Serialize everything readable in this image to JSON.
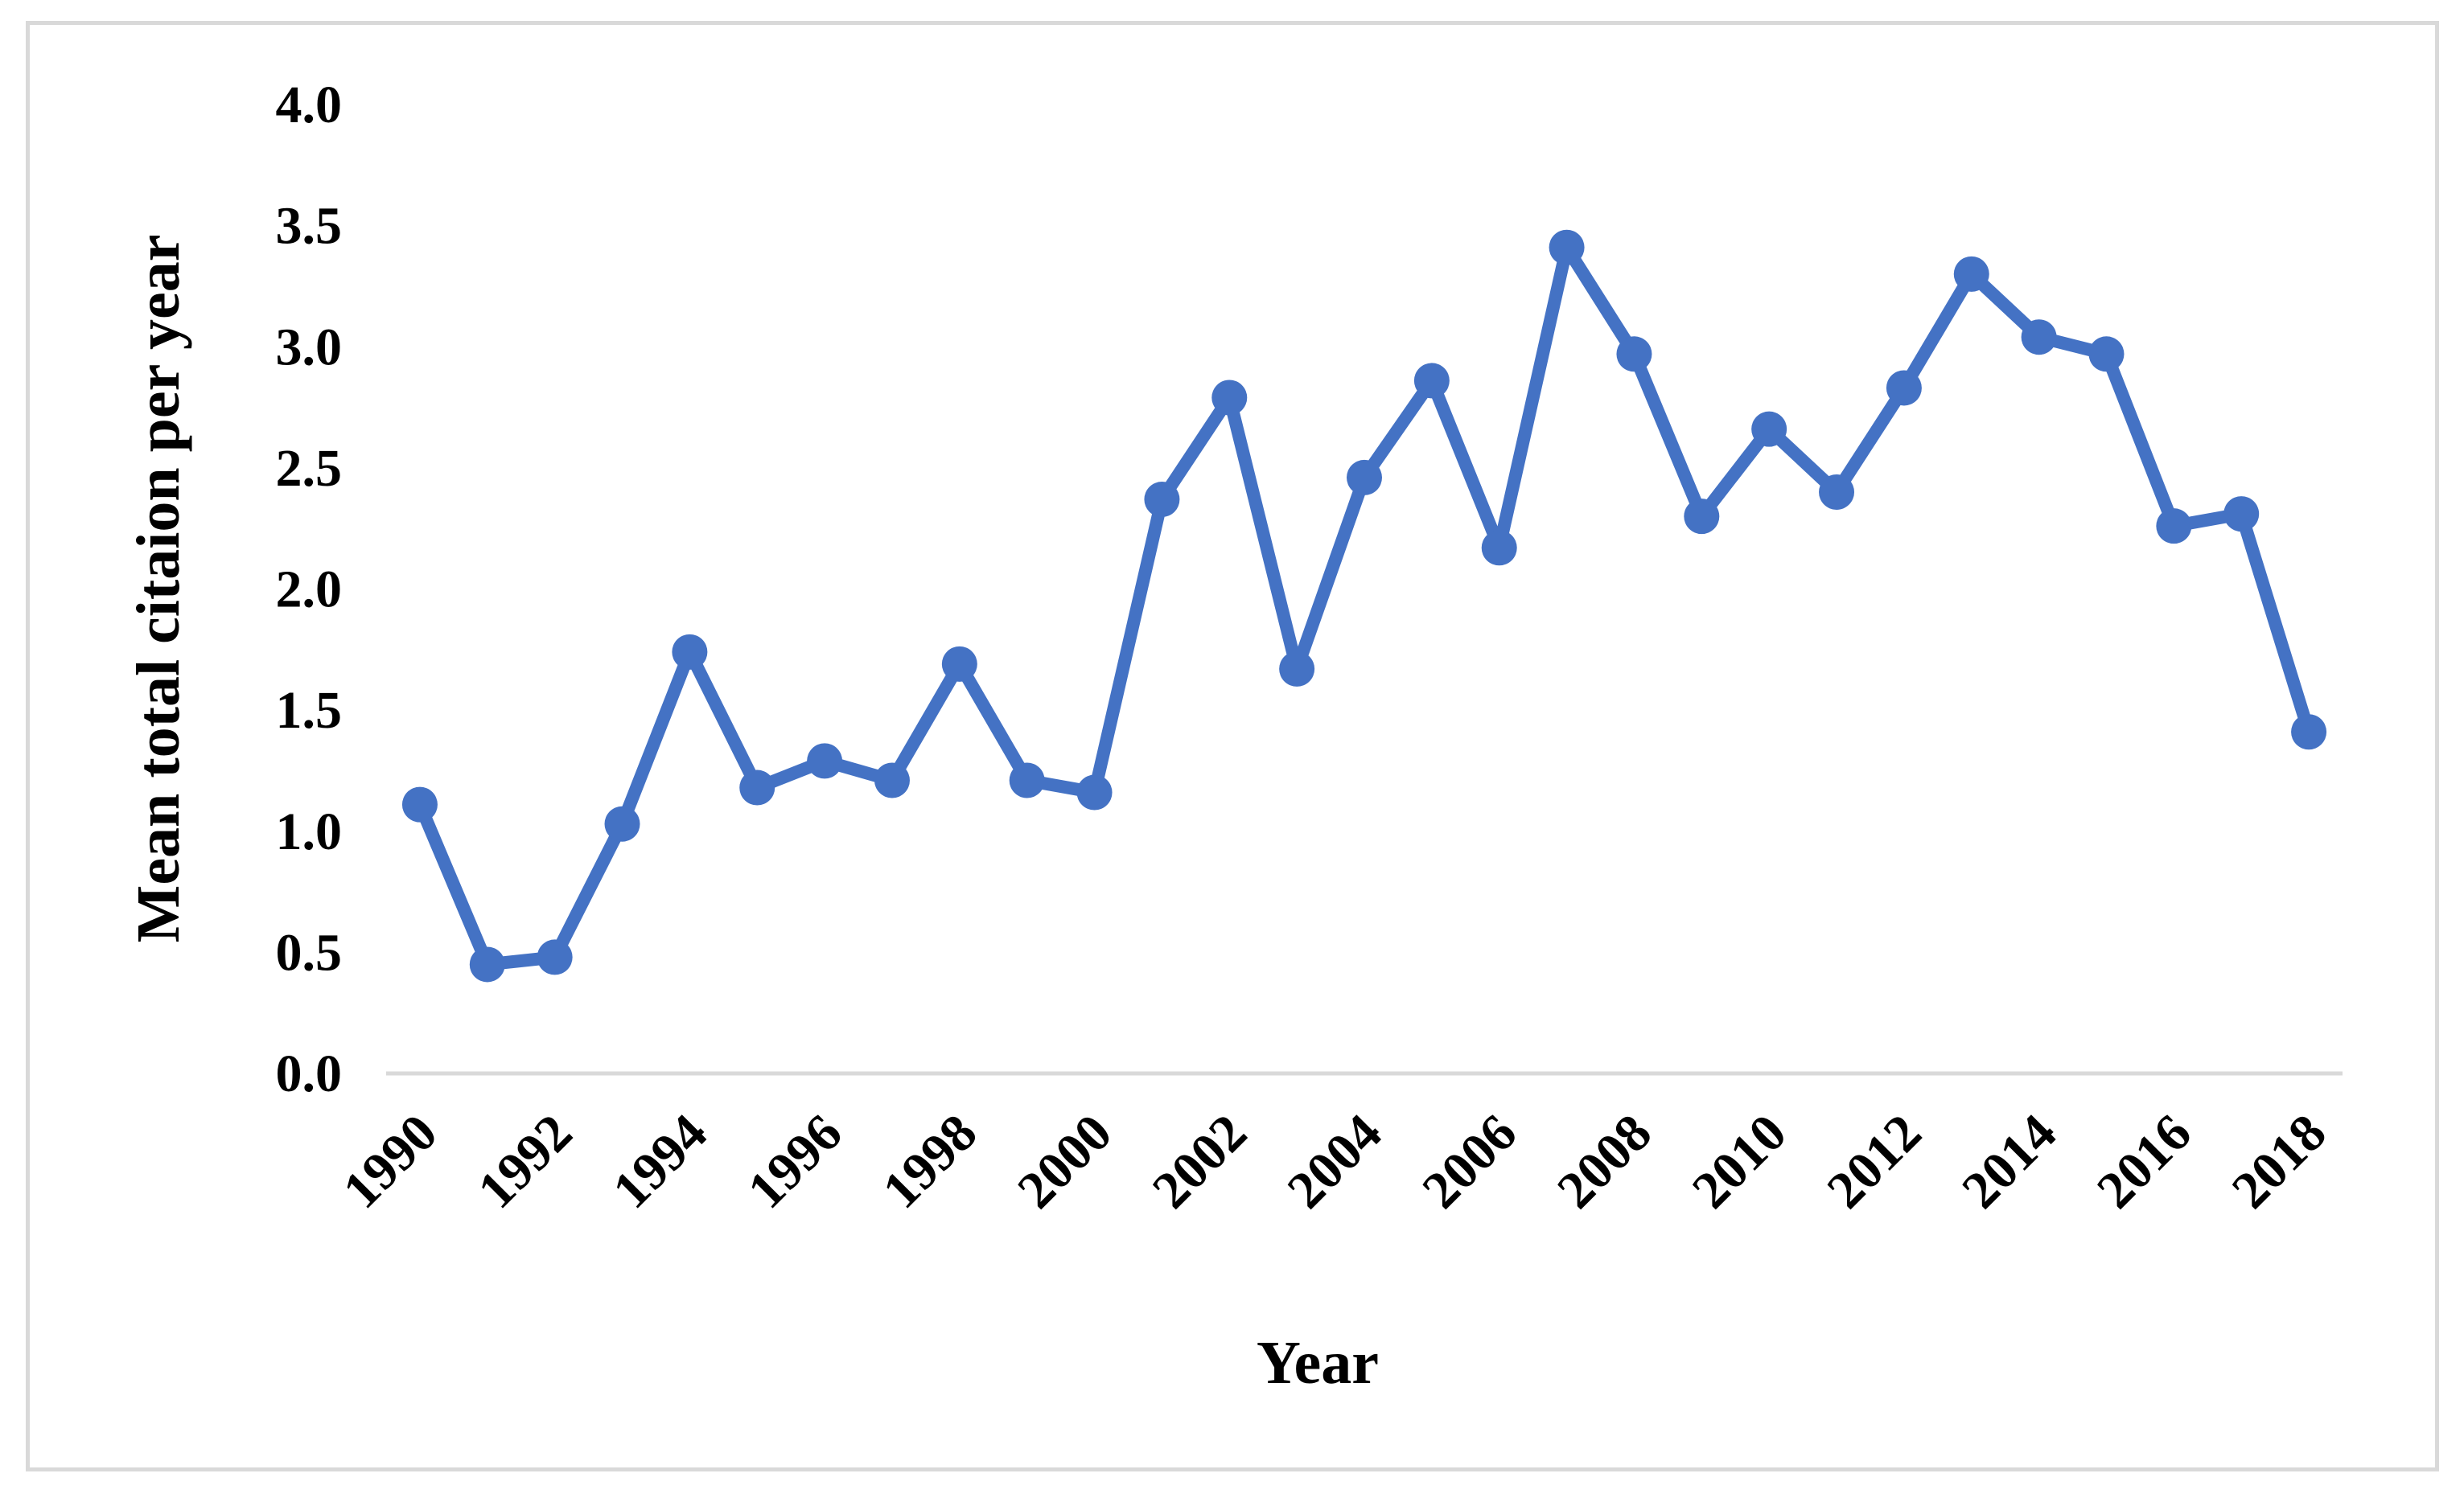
{
  "chart_data": {
    "type": "line",
    "title": "",
    "xlabel": "Year",
    "ylabel": "Mean total citaion per year",
    "ylim": [
      0,
      4
    ],
    "y_ticks": [
      "0.0",
      "0.5",
      "1.0",
      "1.5",
      "2.0",
      "2.5",
      "3.0",
      "3.5",
      "4.0"
    ],
    "x_tick_labels": [
      "1990",
      "1992",
      "1994",
      "1996",
      "1998",
      "2000",
      "2002",
      "2004",
      "2006",
      "2008",
      "2010",
      "2012",
      "2014",
      "2016",
      "2018"
    ],
    "grid": false,
    "legend": "none",
    "series": [
      {
        "color": "#4472c4",
        "x": [
          1990,
          1991,
          1992,
          1993,
          1994,
          1995,
          1996,
          1997,
          1998,
          1999,
          2000,
          2001,
          2002,
          2003,
          2004,
          2005,
          2006,
          2007,
          2008,
          2009,
          2010,
          2011,
          2012,
          2013,
          2014,
          2015,
          2016,
          2017,
          2018
        ],
        "values": [
          1.11,
          0.45,
          0.48,
          1.03,
          1.74,
          1.18,
          1.29,
          1.21,
          1.69,
          1.21,
          1.16,
          2.37,
          2.79,
          1.67,
          2.46,
          2.86,
          2.17,
          3.41,
          2.97,
          2.3,
          2.66,
          2.4,
          2.83,
          3.3,
          3.04,
          2.97,
          2.26,
          2.31,
          1.41
        ]
      }
    ],
    "axis_color": "#d9d9d9"
  }
}
